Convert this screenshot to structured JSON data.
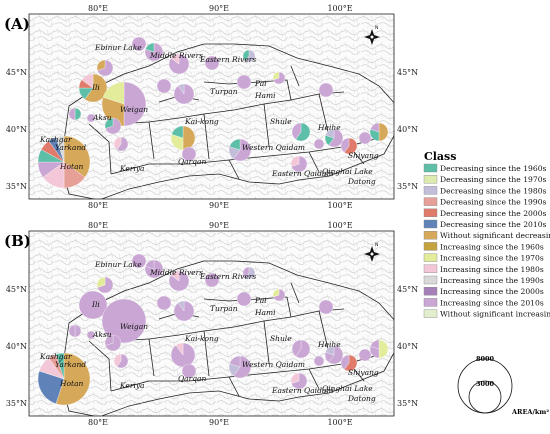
{
  "panels": [
    {
      "id": "A",
      "label": "(A)",
      "layout": "a"
    },
    {
      "id": "B",
      "label": "(B)",
      "layout": "b"
    }
  ],
  "lon_labels": [
    "80°E",
    "90°E",
    "100°E"
  ],
  "lat_labels": [
    "45°N",
    "40°N",
    "35°N"
  ],
  "north_arrow_letter": "N",
  "regions": [
    "Ebinur Lake",
    "Middle Rivers",
    "Eastern Rivers",
    "Ili",
    "Pai",
    "Turpan",
    "Hami",
    "Aksu",
    "Weigan",
    "Kai-kong",
    "Kashgar",
    "Yarkand",
    "Hotan",
    "Keriya",
    "Qarqan",
    "Shule",
    "Heihe",
    "Shiyang",
    "Western Qaidam",
    "Eastern Qaidam",
    "Qinghai Lake",
    "Datong"
  ],
  "legend": {
    "title": "Class",
    "classes": [
      {
        "label": "Decreasing since the 1960s",
        "color": "#5dbfa8"
      },
      {
        "label": "Decreasing since the 1970s",
        "color": "#dcebb0"
      },
      {
        "label": "Decreasing since the 1980s",
        "color": "#c2bdd9"
      },
      {
        "label": "Decreasing since the 1990s",
        "color": "#e6a098"
      },
      {
        "label": "Decreasing since the 2000s",
        "color": "#e07a6a"
      },
      {
        "label": "Decreasing since the 2010s",
        "color": "#5f82b8"
      },
      {
        "label": "Without significant decreasing",
        "color": "#d6a85a"
      },
      {
        "label": "Increasing since the 1960s",
        "color": "#c4a33f"
      },
      {
        "label": "Increasing since the 1970s",
        "color": "#e2ec9a"
      },
      {
        "label": "Increasing since the 1980s",
        "color": "#f3c7d8"
      },
      {
        "label": "Increasing since the 1990s",
        "color": "#d9d9d9"
      },
      {
        "label": "Increasing since the 2000s",
        "color": "#a57fb8"
      },
      {
        "label": "Increasing since the 2010s",
        "color": "#c9a6d4"
      },
      {
        "label": "Without significant increasing",
        "color": "#e2eecd"
      }
    ]
  },
  "size_legend": {
    "large": "8000",
    "small": "3000",
    "unit": "AREA/km²"
  }
}
